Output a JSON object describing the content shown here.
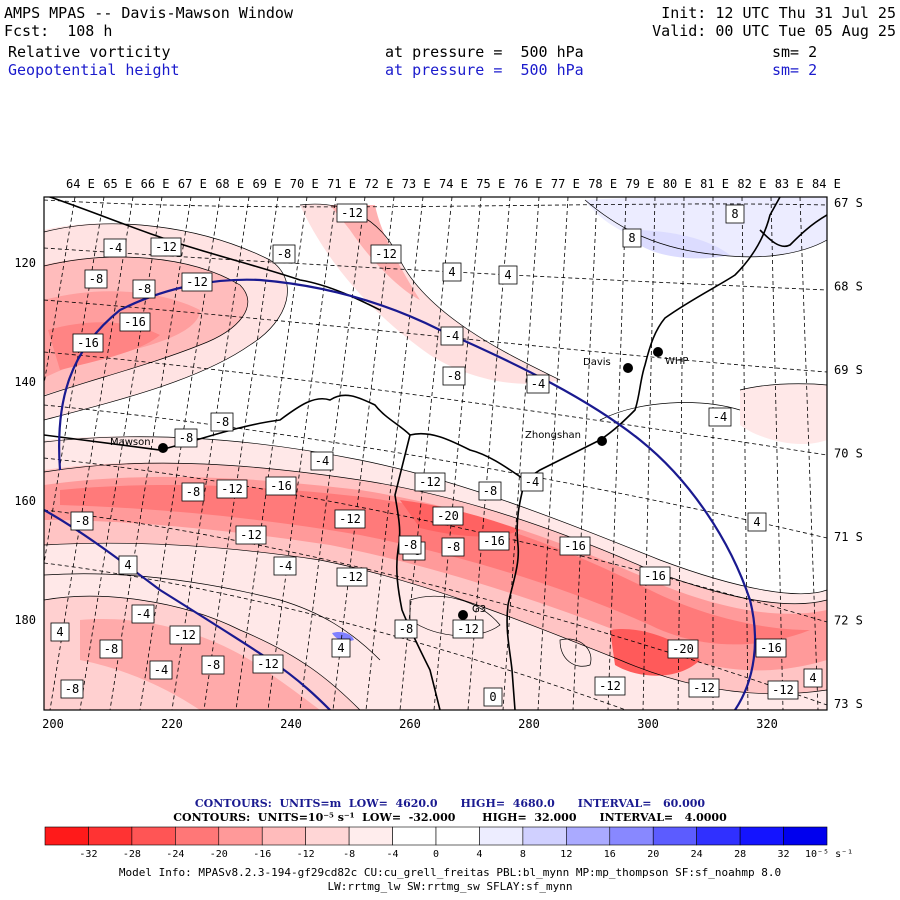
{
  "header": {
    "title": "AMPS MPAS -- Davis-Mawson Window",
    "init": "Init: 12 UTC Thu 31 Jul 25",
    "fcst": "Fcst:  108 h",
    "valid": "Valid: 00 UTC Tue 05 Aug 25",
    "field1": {
      "name": "Relative vorticity",
      "level": "at pressure =  500 hPa",
      "sm": "sm= 2"
    },
    "field2": {
      "name": "Geopotential height",
      "level": "at pressure =  500 hPa",
      "sm": "sm= 2"
    }
  },
  "axes": {
    "top_lon": [
      "64 E",
      "65 E",
      "66 E",
      "67 E",
      "68 E",
      "69 E",
      "70 E",
      "71 E",
      "72 E",
      "73 E",
      "74 E",
      "75 E",
      "76 E",
      "77 E",
      "78 E",
      "79 E",
      "80 E",
      "81 E",
      "82 E",
      "83 E",
      "84 E"
    ],
    "right_lat": [
      "67 S",
      "68 S",
      "69 S",
      "70 S",
      "71 S",
      "72 S",
      "73 S"
    ],
    "bottom_x": [
      "200",
      "220",
      "240",
      "260",
      "280",
      "300",
      "320"
    ],
    "left_y": [
      "120",
      "140",
      "160",
      "180"
    ]
  },
  "stations": [
    {
      "name": "Davis"
    },
    {
      "name": "WHP"
    },
    {
      "name": "Zhongshan"
    },
    {
      "name": "Mawson"
    },
    {
      "name": "G3"
    }
  ],
  "contour_labels": [
    {
      "text": "-12"
    },
    {
      "text": "-4"
    },
    {
      "text": "-12"
    },
    {
      "text": "-8"
    },
    {
      "text": "-8"
    },
    {
      "text": "-12"
    },
    {
      "text": "-8"
    },
    {
      "text": "-12"
    },
    {
      "text": "-16"
    },
    {
      "text": "-16"
    },
    {
      "text": "4"
    },
    {
      "text": "4"
    },
    {
      "text": "-4"
    },
    {
      "text": "-8"
    },
    {
      "text": "-4"
    },
    {
      "text": "8"
    },
    {
      "text": "8"
    },
    {
      "text": "-8"
    },
    {
      "text": "-8"
    },
    {
      "text": "-4"
    },
    {
      "text": "-4"
    },
    {
      "text": "-8"
    },
    {
      "text": "-12"
    },
    {
      "text": "-16"
    },
    {
      "text": "-12"
    },
    {
      "text": "-8"
    },
    {
      "text": "-4"
    },
    {
      "text": "-8"
    },
    {
      "text": "-20"
    },
    {
      "text": "-12"
    },
    {
      "text": "-12"
    },
    {
      "text": "-8"
    },
    {
      "text": "-8"
    },
    {
      "text": "-16"
    },
    {
      "text": "-16"
    },
    {
      "text": "4"
    },
    {
      "text": "-4"
    },
    {
      "text": "4"
    },
    {
      "text": "-12"
    },
    {
      "text": "-16"
    },
    {
      "text": "-4"
    },
    {
      "text": "-12"
    },
    {
      "text": "4"
    },
    {
      "text": "-8"
    },
    {
      "text": "-8"
    },
    {
      "text": "-12"
    },
    {
      "text": "-4"
    },
    {
      "text": "-8"
    },
    {
      "text": "-12"
    },
    {
      "text": "4"
    },
    {
      "text": "-8"
    },
    {
      "text": "-12"
    },
    {
      "text": "-12"
    },
    {
      "text": "-20"
    },
    {
      "text": "-16"
    },
    {
      "text": "-12"
    },
    {
      "text": "-8"
    },
    {
      "text": "4"
    },
    {
      "text": "0"
    }
  ],
  "contour_info": {
    "line1": "CONTOURS:  UNITS=m  LOW=  4620.0      HIGH=  4680.0      INTERVAL=   60.000",
    "line2": "CONTOURS:  UNITS=10⁻⁵ s⁻¹  LOW=  -32.000       HIGH=  32.000      INTERVAL=   4.0000"
  },
  "colorbar": {
    "colors": [
      "#ff1a1a",
      "#ff3333",
      "#ff5555",
      "#ff7777",
      "#ff9999",
      "#ffbbbb",
      "#ffd6d6",
      "#ffeded",
      "#ffffff",
      "#ffffff",
      "#ededff",
      "#d0d0ff",
      "#aaaaff",
      "#8888ff",
      "#5c5cff",
      "#3030ff",
      "#1414ff",
      "#0000ee"
    ],
    "ticks": [
      "-32",
      "-28",
      "-24",
      "-20",
      "-16",
      "-12",
      "-8",
      "-4",
      "0",
      "4",
      "8",
      "12",
      "16",
      "20",
      "24",
      "28",
      "32"
    ],
    "unit": "10⁻⁵ s⁻¹"
  },
  "model_info": {
    "line1": "Model Info: MPASv8.2.3-194-gf29cd82c CU:cu_grell_freitas PBL:bl_mynn MP:mp_thompson SF:sf_noahmp 8.0",
    "line2": "LW:rrtmg_lw SW:rrtmg_sw SFLAY:sf_mynn"
  }
}
